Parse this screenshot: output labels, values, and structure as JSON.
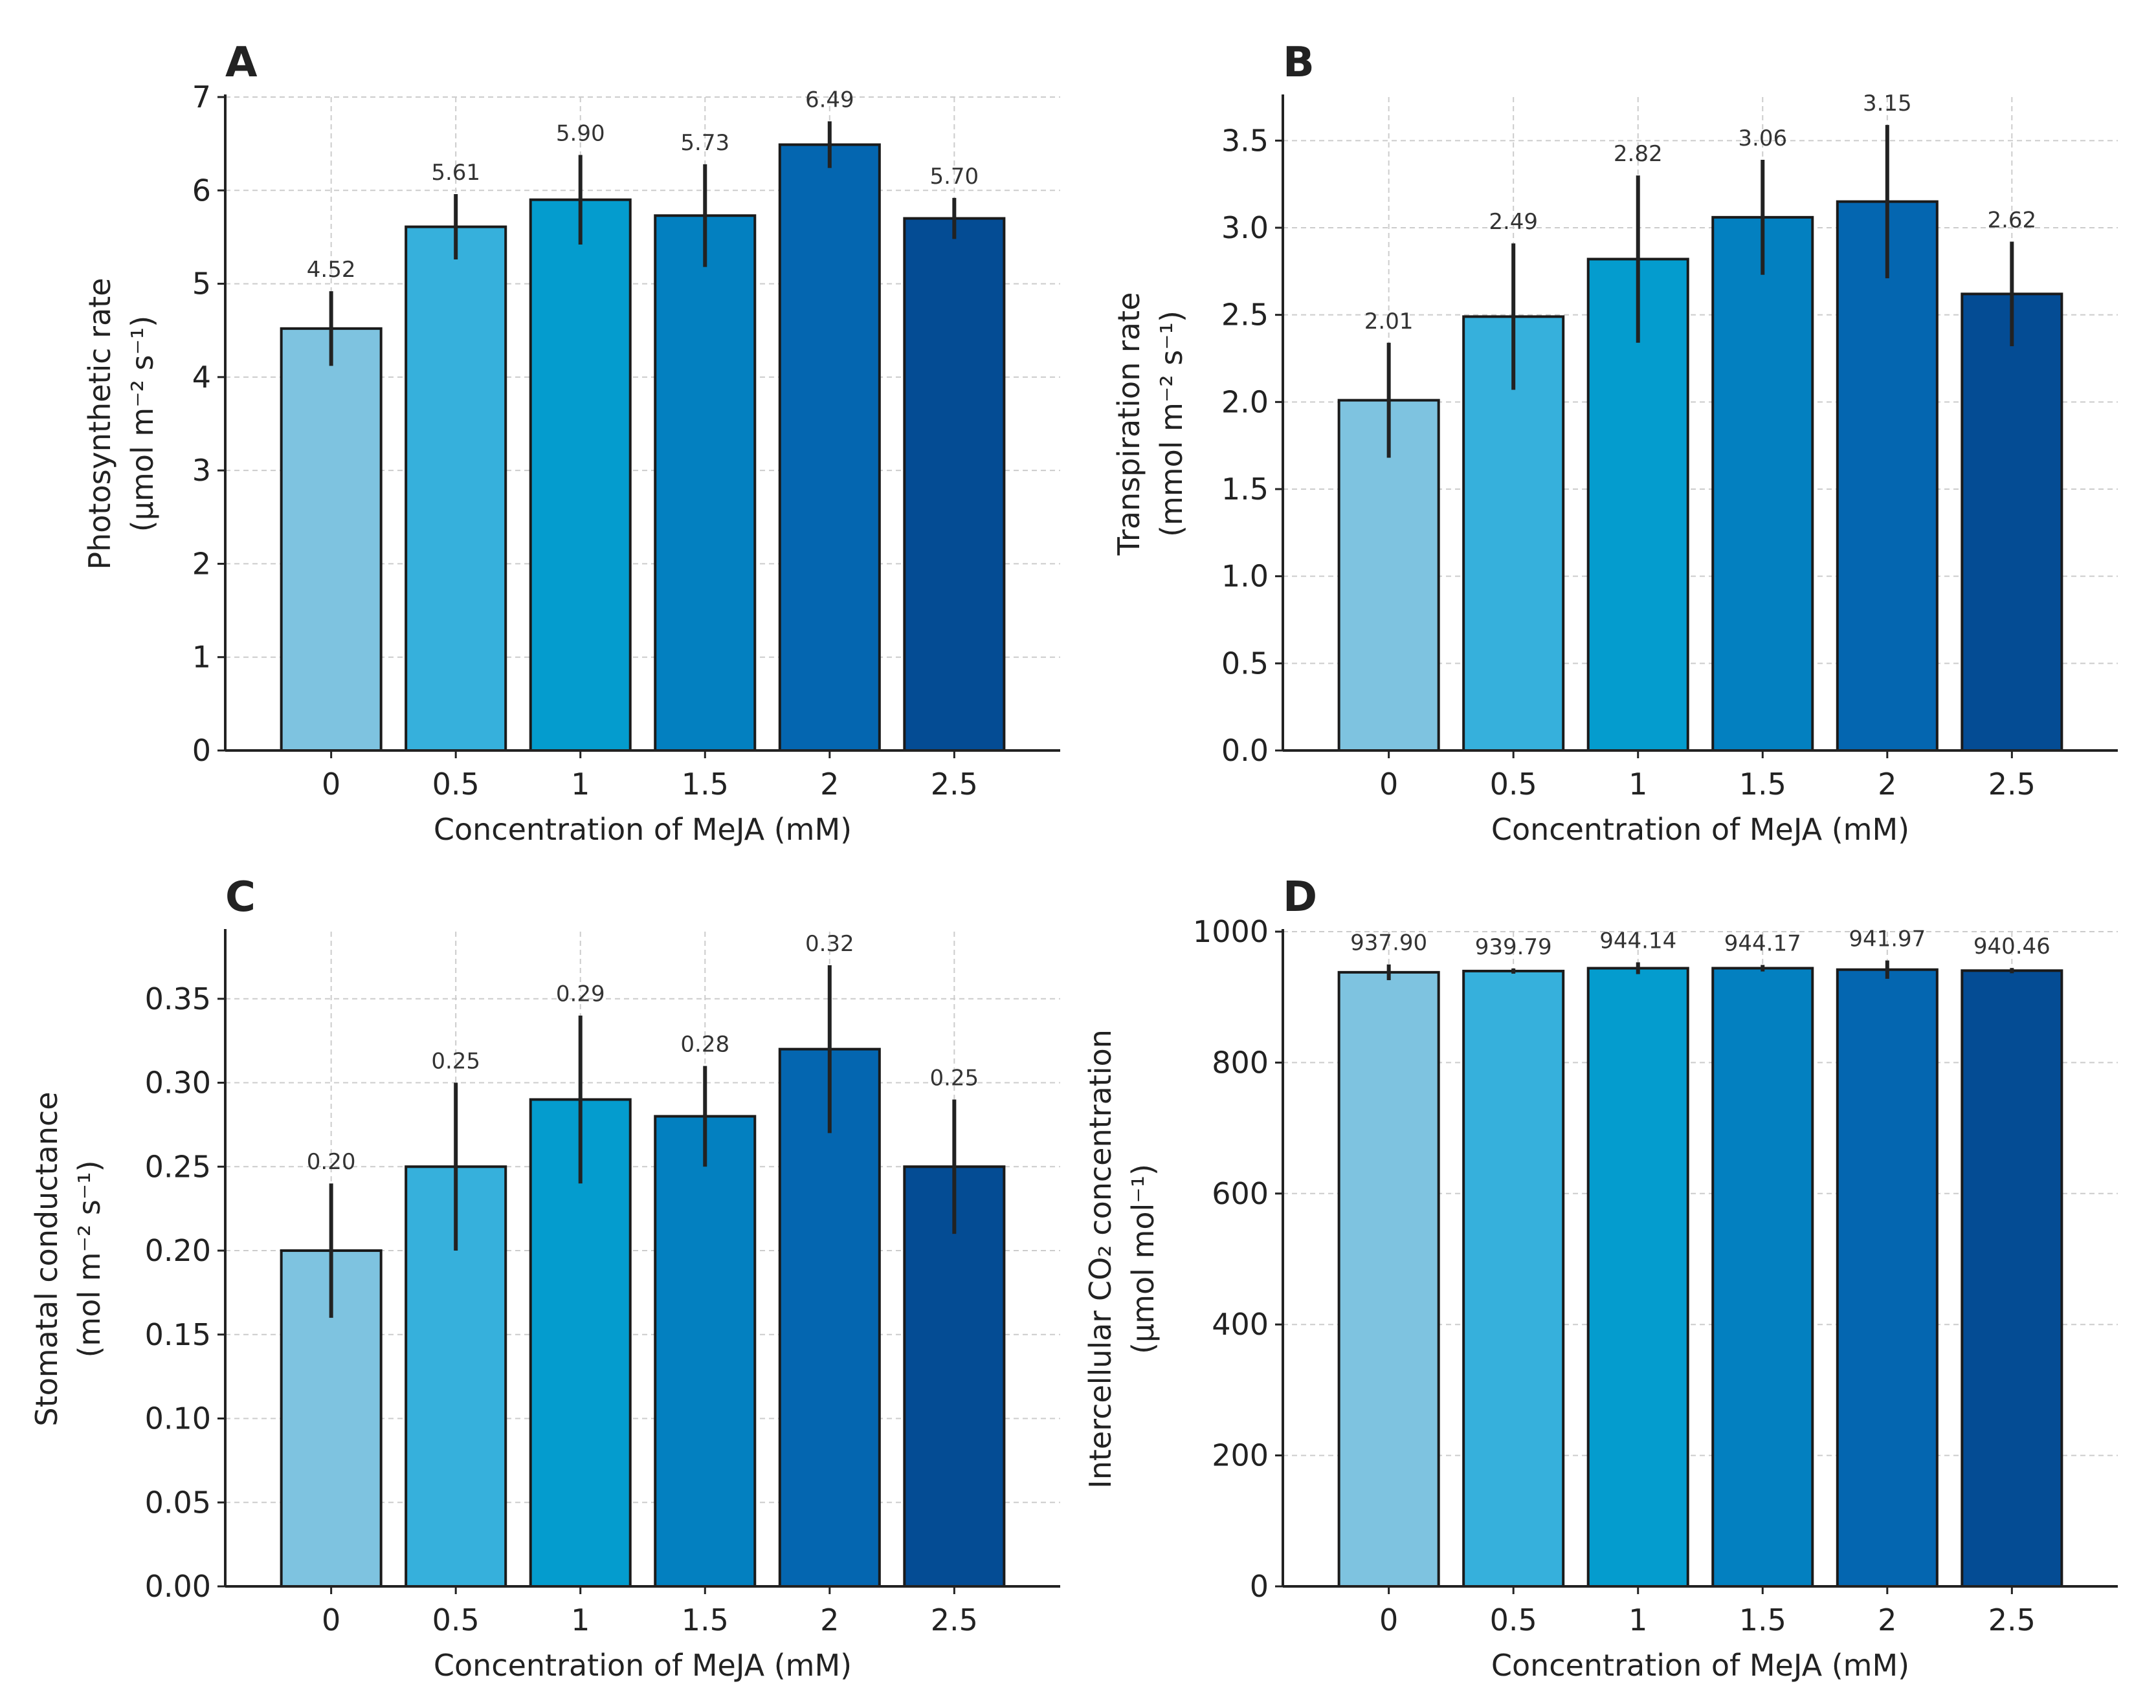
{
  "figure": {
    "bar_colors": [
      "#7ec3e0",
      "#36b0dc",
      "#049cce",
      "#0380c0",
      "#0466b0",
      "#044c94"
    ]
  },
  "chart_data": [
    {
      "type": "bar",
      "panel": "A",
      "title": "",
      "categories": [
        "0",
        "0.5",
        "1",
        "1.5",
        "2",
        "2.5"
      ],
      "values": [
        4.52,
        5.61,
        5.9,
        5.73,
        6.49,
        5.7
      ],
      "value_labels": [
        "4.52",
        "5.61",
        "5.90",
        "5.73",
        "6.49",
        "5.70"
      ],
      "errors": [
        0.4,
        0.35,
        0.48,
        0.55,
        0.25,
        0.22
      ],
      "xlabel": "Concentration of MeJA (mM)",
      "ylabel_lines": [
        "Photosynthetic rate",
        "(μmol m⁻² s⁻¹)"
      ],
      "ylim": [
        0,
        7
      ],
      "yticks": [
        0,
        1,
        2,
        3,
        4,
        5,
        6,
        7
      ],
      "ytick_labels": [
        "0",
        "1",
        "2",
        "3",
        "4",
        "5",
        "6",
        "7"
      ],
      "grid": true
    },
    {
      "type": "bar",
      "panel": "B",
      "title": "",
      "categories": [
        "0",
        "0.5",
        "1",
        "1.5",
        "2",
        "2.5"
      ],
      "values": [
        2.01,
        2.49,
        2.82,
        3.06,
        3.15,
        2.62
      ],
      "value_labels": [
        "2.01",
        "2.49",
        "2.82",
        "3.06",
        "3.15",
        "2.62"
      ],
      "errors": [
        0.33,
        0.42,
        0.48,
        0.33,
        0.44,
        0.3
      ],
      "xlabel": "Concentration of MeJA (mM)",
      "ylabel_lines": [
        "Transpiration rate",
        "(mmol m⁻² s⁻¹)"
      ],
      "ylim": [
        0,
        3.75
      ],
      "yticks": [
        0,
        0.5,
        1.0,
        1.5,
        2.0,
        2.5,
        3.0,
        3.5
      ],
      "ytick_labels": [
        "0.0",
        "0.5",
        "1.0",
        "1.5",
        "2.0",
        "2.5",
        "3.0",
        "3.5"
      ],
      "grid": true
    },
    {
      "type": "bar",
      "panel": "C",
      "title": "",
      "categories": [
        "0",
        "0.5",
        "1",
        "1.5",
        "2",
        "2.5"
      ],
      "values": [
        0.2,
        0.25,
        0.29,
        0.28,
        0.32,
        0.25
      ],
      "value_labels": [
        "0.20",
        "0.25",
        "0.29",
        "0.28",
        "0.32",
        "0.25"
      ],
      "errors": [
        0.04,
        0.05,
        0.05,
        0.03,
        0.05,
        0.04
      ],
      "xlabel": "Concentration of MeJA (mM)",
      "ylabel_lines": [
        "Stomatal conductance",
        "(mol m⁻² s⁻¹)"
      ],
      "ylim": [
        0,
        0.39
      ],
      "yticks": [
        0,
        0.05,
        0.1,
        0.15,
        0.2,
        0.25,
        0.3,
        0.35
      ],
      "ytick_labels": [
        "0.00",
        "0.05",
        "0.10",
        "0.15",
        "0.20",
        "0.25",
        "0.30",
        "0.35"
      ],
      "grid": true
    },
    {
      "type": "bar",
      "panel": "D",
      "title": "",
      "categories": [
        "0",
        "0.5",
        "1",
        "1.5",
        "2",
        "2.5"
      ],
      "values": [
        937.9,
        939.79,
        944.14,
        944.17,
        941.97,
        940.46
      ],
      "value_labels": [
        "937.90",
        "939.79",
        "944.14",
        "944.17",
        "941.97",
        "940.46"
      ],
      "errors": [
        12,
        4,
        9,
        5,
        14,
        4
      ],
      "xlabel": "Concentration of MeJA (mM)",
      "ylabel_lines": [
        "Intercellular CO₂ concentration",
        "(μmol mol⁻¹)"
      ],
      "ylim": [
        0,
        1000
      ],
      "yticks": [
        0,
        200,
        400,
        600,
        800,
        1000
      ],
      "ytick_labels": [
        "0",
        "200",
        "400",
        "600",
        "800",
        "1000"
      ],
      "grid": true
    }
  ]
}
